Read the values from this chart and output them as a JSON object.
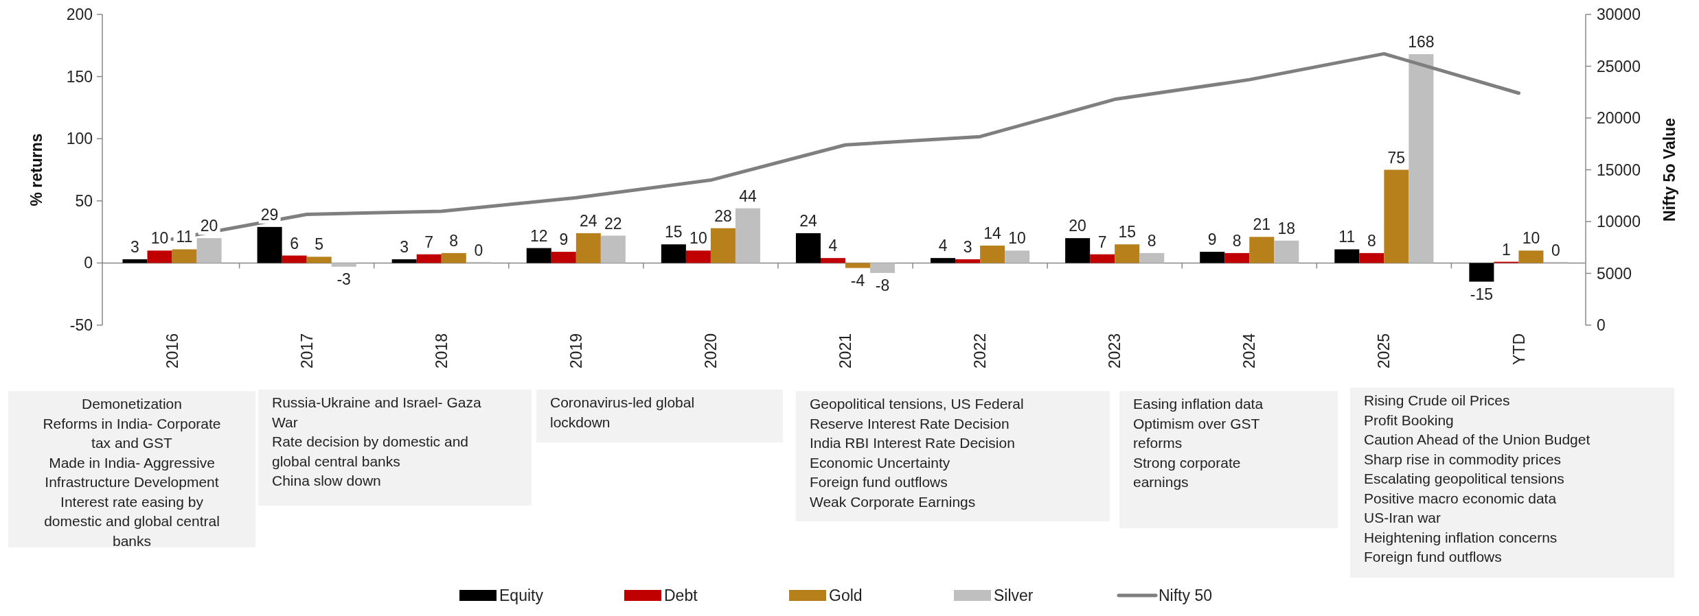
{
  "chart_data": {
    "type": "bar",
    "categories": [
      "2016",
      "2017",
      "2018",
      "2019",
      "2020",
      "2021",
      "2022",
      "2023",
      "2024",
      "2025",
      "YTD"
    ],
    "series": [
      {
        "name": "Equity",
        "color": "#000000",
        "values": [
          3,
          29,
          3,
          12,
          15,
          24,
          4,
          20,
          9,
          11,
          -15
        ],
        "value_labels": [
          "3",
          "29",
          "3",
          "12",
          "15",
          "24",
          "4",
          "20",
          "9",
          "11",
          "-15"
        ]
      },
      {
        "name": "Debt",
        "color": "#c00000",
        "values": [
          10,
          6,
          7,
          9,
          10,
          4,
          3,
          7,
          8,
          8,
          1
        ],
        "value_labels": [
          "10",
          "6",
          "7",
          "9",
          "10",
          "4",
          "3",
          "7",
          "8",
          "8",
          "1"
        ]
      },
      {
        "name": "Gold",
        "color": "#b8801a",
        "values": [
          11,
          5,
          8,
          24,
          28,
          -4,
          14,
          15,
          21,
          75,
          10
        ],
        "value_labels": [
          "11",
          "5",
          "8",
          "24",
          "28",
          "-4",
          "14",
          "15",
          "21",
          "75",
          "10"
        ]
      },
      {
        "name": "Silver",
        "color": "#bfbfbf",
        "values": [
          20,
          -3,
          0,
          22,
          44,
          -8,
          10,
          8,
          18,
          168,
          0
        ],
        "value_labels": [
          "20",
          "-3",
          "0",
          "22",
          "44",
          "-8",
          "10",
          "8",
          "18",
          "168",
          "0"
        ]
      },
      {
        "name": "Nifty 50",
        "type": "line",
        "axis": "y2",
        "color": "#7f7f7f",
        "values": [
          8300,
          10700,
          11000,
          12300,
          14000,
          17400,
          18200,
          21800,
          23700,
          26200,
          22400
        ]
      }
    ],
    "ylabel": "% returns",
    "y2label": "Nifty 5o Value",
    "ylim": [
      -50,
      200
    ],
    "yticks": [
      -50,
      0,
      50,
      100,
      150,
      200
    ],
    "y2lim": [
      0,
      30000
    ],
    "y2ticks": [
      0,
      5000,
      10000,
      15000,
      20000,
      25000,
      30000
    ],
    "legend": "bottom",
    "annotations": [
      "Demonetization\nReforms in India- Corporate\ntax and GST\nMade in India- Aggressive\nInfrastructure Development\nInterest rate easing by\ndomestic and global central\nbanks",
      "Russia-Ukraine and Israel- Gaza\nWar\nRate decision by domestic and\nglobal central banks\nChina slow down",
      "Coronavirus-led global\nlockdown",
      "Geopolitical tensions, US Federal\nReserve Interest Rate Decision\nIndia RBI Interest Rate Decision\nEconomic Uncertainty\nForeign fund outflows\nWeak Corporate Earnings",
      "Easing inflation data\nOptimism over GST\nreforms\nStrong corporate\nearnings",
      "Rising Crude oil Prices\nProfit Booking\nCaution Ahead of the Union Budget\nSharp rise in commodity prices\nEscalating geopolitical tensions\nPositive macro economic data\nUS-Iran war\nHeightening inflation concerns\nForeign fund outflows"
    ]
  }
}
